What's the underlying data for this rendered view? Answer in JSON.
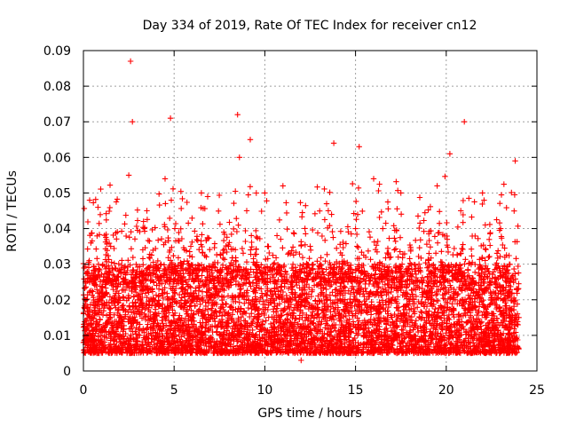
{
  "chart_data": {
    "type": "scatter",
    "title": "Day 334 of 2019, Rate Of TEC Index for receiver cn12",
    "xlabel": "GPS time / hours",
    "ylabel": "ROTI / TECUs",
    "xlim": [
      0,
      25
    ],
    "ylim": [
      0,
      0.09
    ],
    "x_ticks": [
      0,
      5,
      10,
      15,
      20,
      25
    ],
    "x_tick_labels": [
      "0",
      "5",
      "10",
      "15",
      "20",
      "25"
    ],
    "y_ticks": [
      0,
      0.01,
      0.02,
      0.03,
      0.04,
      0.05,
      0.06,
      0.07,
      0.08,
      0.09
    ],
    "y_tick_labels": [
      "0",
      "0.01",
      "0.02",
      "0.03",
      "0.04",
      "0.05",
      "0.06",
      "0.07",
      "0.08",
      "0.09"
    ],
    "grid": true,
    "legend": "none",
    "marker": "plus",
    "color": "#ff0000",
    "series": [
      {
        "x": [
          0.0,
          0.1,
          0.3,
          0.5,
          0.8,
          1.0,
          1.5,
          2.0,
          2.5,
          2.6,
          2.7,
          3.0,
          3.5,
          4.0,
          4.5,
          4.8,
          5.0,
          5.5,
          6.0,
          6.5,
          7.0,
          7.5,
          8.0,
          8.5,
          8.6,
          9.0,
          9.2,
          9.5,
          10.0,
          10.5,
          11.0,
          11.5,
          12.0,
          12.5,
          13.0,
          13.5,
          13.8,
          14.0,
          14.5,
          15.0,
          15.2,
          15.5,
          16.0,
          16.5,
          17.0,
          17.5,
          18.0,
          18.5,
          19.0,
          19.5,
          20.0,
          20.2,
          20.5,
          20.8,
          21.0,
          21.5,
          22.0,
          22.5,
          23.0,
          23.5,
          23.8,
          24.0
        ],
        "y": [
          0.008,
          0.02,
          0.03,
          0.01,
          0.046,
          0.012,
          0.035,
          0.015,
          0.055,
          0.087,
          0.07,
          0.02,
          0.045,
          0.01,
          0.054,
          0.071,
          0.012,
          0.03,
          0.02,
          0.05,
          0.015,
          0.01,
          0.035,
          0.072,
          0.06,
          0.045,
          0.065,
          0.02,
          0.05,
          0.012,
          0.052,
          0.02,
          0.003,
          0.035,
          0.015,
          0.045,
          0.064,
          0.02,
          0.012,
          0.04,
          0.063,
          0.012,
          0.054,
          0.04,
          0.02,
          0.05,
          0.01,
          0.03,
          0.015,
          0.052,
          0.005,
          0.061,
          0.02,
          0.045,
          0.07,
          0.012,
          0.05,
          0.02,
          0.04,
          0.01,
          0.059,
          0.015
        ]
      }
    ],
    "dense_band": {
      "x_range": [
        0,
        24
      ],
      "y_min": 0.005,
      "y_max": 0.03
    }
  }
}
